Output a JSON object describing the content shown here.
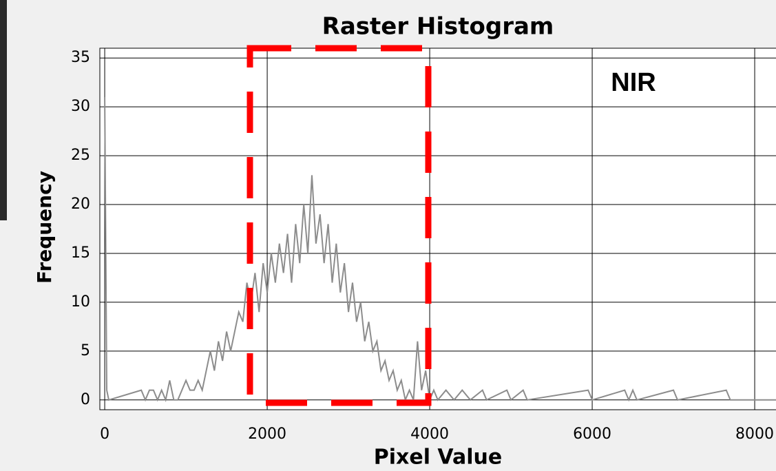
{
  "chart_data": {
    "type": "line",
    "title": "Raster Histogram",
    "annotation": "NIR",
    "x_label": "Pixel Value",
    "y_label": "Frequency",
    "x": [
      0,
      25,
      50,
      450,
      500,
      550,
      600,
      650,
      700,
      750,
      800,
      850,
      900,
      950,
      1000,
      1050,
      1100,
      1150,
      1200,
      1250,
      1300,
      1350,
      1400,
      1450,
      1500,
      1550,
      1600,
      1650,
      1700,
      1750,
      1800,
      1850,
      1900,
      1950,
      2000,
      2050,
      2100,
      2150,
      2200,
      2250,
      2300,
      2350,
      2400,
      2450,
      2500,
      2550,
      2600,
      2650,
      2700,
      2750,
      2800,
      2850,
      2900,
      2950,
      3000,
      3050,
      3100,
      3150,
      3200,
      3250,
      3300,
      3350,
      3400,
      3450,
      3500,
      3550,
      3600,
      3650,
      3700,
      3750,
      3800,
      3850,
      3900,
      3950,
      4000,
      4050,
      4100,
      4200,
      4300,
      4400,
      4500,
      4650,
      4700,
      4950,
      5000,
      5150,
      5200,
      5950,
      6000,
      6400,
      6450,
      6500,
      6550,
      7000,
      7050,
      7650,
      7700,
      8300
    ],
    "series": [
      {
        "name": "NIR",
        "color": "#8c8c8c",
        "values": [
          31,
          1,
          0,
          1,
          0,
          1,
          1,
          0,
          1,
          0,
          2,
          0,
          0,
          1,
          2,
          1,
          1,
          2,
          1,
          3,
          5,
          3,
          6,
          4,
          7,
          5,
          7,
          9,
          8,
          12,
          10,
          13,
          9,
          14,
          11,
          15,
          12,
          16,
          13,
          17,
          12,
          18,
          14,
          20,
          15,
          23,
          16,
          19,
          14,
          18,
          12,
          16,
          11,
          14,
          9,
          12,
          8,
          10,
          6,
          8,
          5,
          6,
          3,
          4,
          2,
          3,
          1,
          2,
          0,
          1,
          0,
          6,
          1,
          3,
          0,
          1,
          0,
          1,
          0,
          1,
          0,
          1,
          0,
          1,
          0,
          1,
          0,
          1,
          0,
          1,
          0,
          1,
          0,
          1,
          0,
          1,
          0,
          0
        ]
      }
    ],
    "xlim": [
      -60,
      8330
    ],
    "ylim": [
      -1,
      36
    ],
    "xticks": [
      0,
      2000,
      4000,
      6000,
      8000
    ],
    "yticks": [
      0,
      5,
      10,
      15,
      20,
      25,
      30,
      35
    ],
    "grid": true
  }
}
